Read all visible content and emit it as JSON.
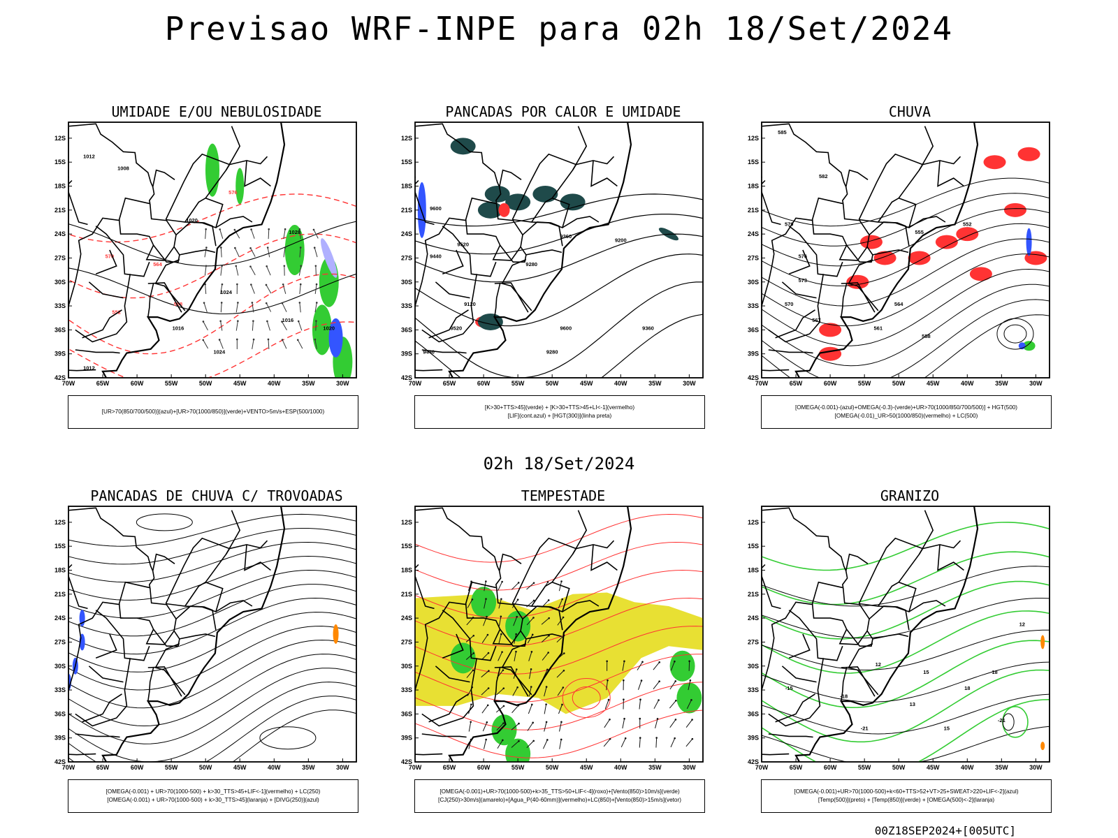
{
  "main_title": "Previsao WRF-INPE  para 02h 18/Set/2024",
  "mid_title": "02h 18/Set/2024",
  "footer_stamp": "00Z18SEP2024+[005UTC]",
  "axes": {
    "lat_labels": [
      "12S",
      "15S",
      "18S",
      "21S",
      "24S",
      "27S",
      "30S",
      "33S",
      "36S",
      "39S",
      "42S"
    ],
    "lon_labels": [
      "70W",
      "65W",
      "60W",
      "55W",
      "50W",
      "45W",
      "40W",
      "35W",
      "30W"
    ]
  },
  "colors": {
    "coast": "#000000",
    "contour": "#000000",
    "red": "#ff3333",
    "green": "#33cc33",
    "blue": "#3355ff",
    "dark_teal": "#1f4a4a",
    "yellow": "#e8e033",
    "orange": "#ff8800",
    "lavender": "#b0b0ff"
  },
  "panels": [
    {
      "id": "umidade",
      "title": "UMIDADE E/OU NEBULOSIDADE",
      "legend": [
        "[UR>70(850/700/500)](azul)+[UR>70(1000/850)](verde)+VENTO>5m/s+ESP(500/1000)"
      ],
      "contour_labels": [
        "1012",
        "1008",
        "1020",
        "1016",
        "1024",
        "1028",
        "1016",
        "1020",
        "570",
        "576",
        "564",
        "558",
        "552",
        "1024",
        "1012"
      ]
    },
    {
      "id": "pancadas_calor",
      "title": "PANCADAS POR CALOR E UMIDADE",
      "legend": [
        "[K>30+TTS>45](verde) + [K>30+TTS>45+LI<-1](vermelho)",
        "[LIF](cont.azul) + [HGT(300)](linha preta)"
      ],
      "contour_labels": [
        "9600",
        "9520",
        "9440",
        "9360",
        "9280",
        "9200",
        "9120",
        "9600",
        "9520",
        "9440",
        "9360",
        "9280"
      ]
    },
    {
      "id": "chuva",
      "title": "CHUVA",
      "legend": [
        "[OMEGA(-0.001)-(azul)+OMEGA(-0.3)-(verde)+UR>70(1000/850/700/500)] + HGT(500)",
        "[OMEGA(-0.01)_UR>50(1000/850)(vermelho) + LC(500)"
      ],
      "contour_labels": [
        "585",
        "582",
        "579",
        "576",
        "573",
        "570",
        "567",
        "564",
        "561",
        "558",
        "555",
        "552"
      ]
    },
    {
      "id": "pancadas_trovoadas",
      "title": "PANCADAS DE CHUVA C/ TROVOADAS",
      "legend": [
        "[OMEGA(-0.001) + UR>70(1000-500) + k>30_TTS>45+LIF<-1](vermelho) + LC(250)",
        "[OMEGA(-0.001) + UR>70(1000-500) + k>30_TTS>45](laranja) + [DIVG(250)](azul)"
      ]
    },
    {
      "id": "tempestade",
      "title": "TEMPESTADE",
      "legend": [
        "[OMEGA(-0.001)+UR>70(1000-500)+k>35_TTS>50+LIF<-4](roxo)+[Vento(850)>10m/s](verde)",
        "[CJ(250)>30m/s](amarelo)+[Agua_P(40-60mm)](vermelho)+LC(850)+[Vento(850)>15m/s](vetor)"
      ]
    },
    {
      "id": "granizo",
      "title": "GRANIZO",
      "legend": [
        "[OMEGA(-0.001)+UR>70(1000-500)+k<60+TTS>52+VT>25+SWEAT>220+LIF<-2](azul)",
        "[Temp(500)](preto) + [Temp(850)](verde) + [OMEGA(500)<-2](laranja)"
      ],
      "contour_labels": [
        "12",
        "12",
        "15",
        "18",
        "-21",
        "-15",
        "-18",
        "-21",
        "13",
        "15",
        "18"
      ]
    }
  ]
}
